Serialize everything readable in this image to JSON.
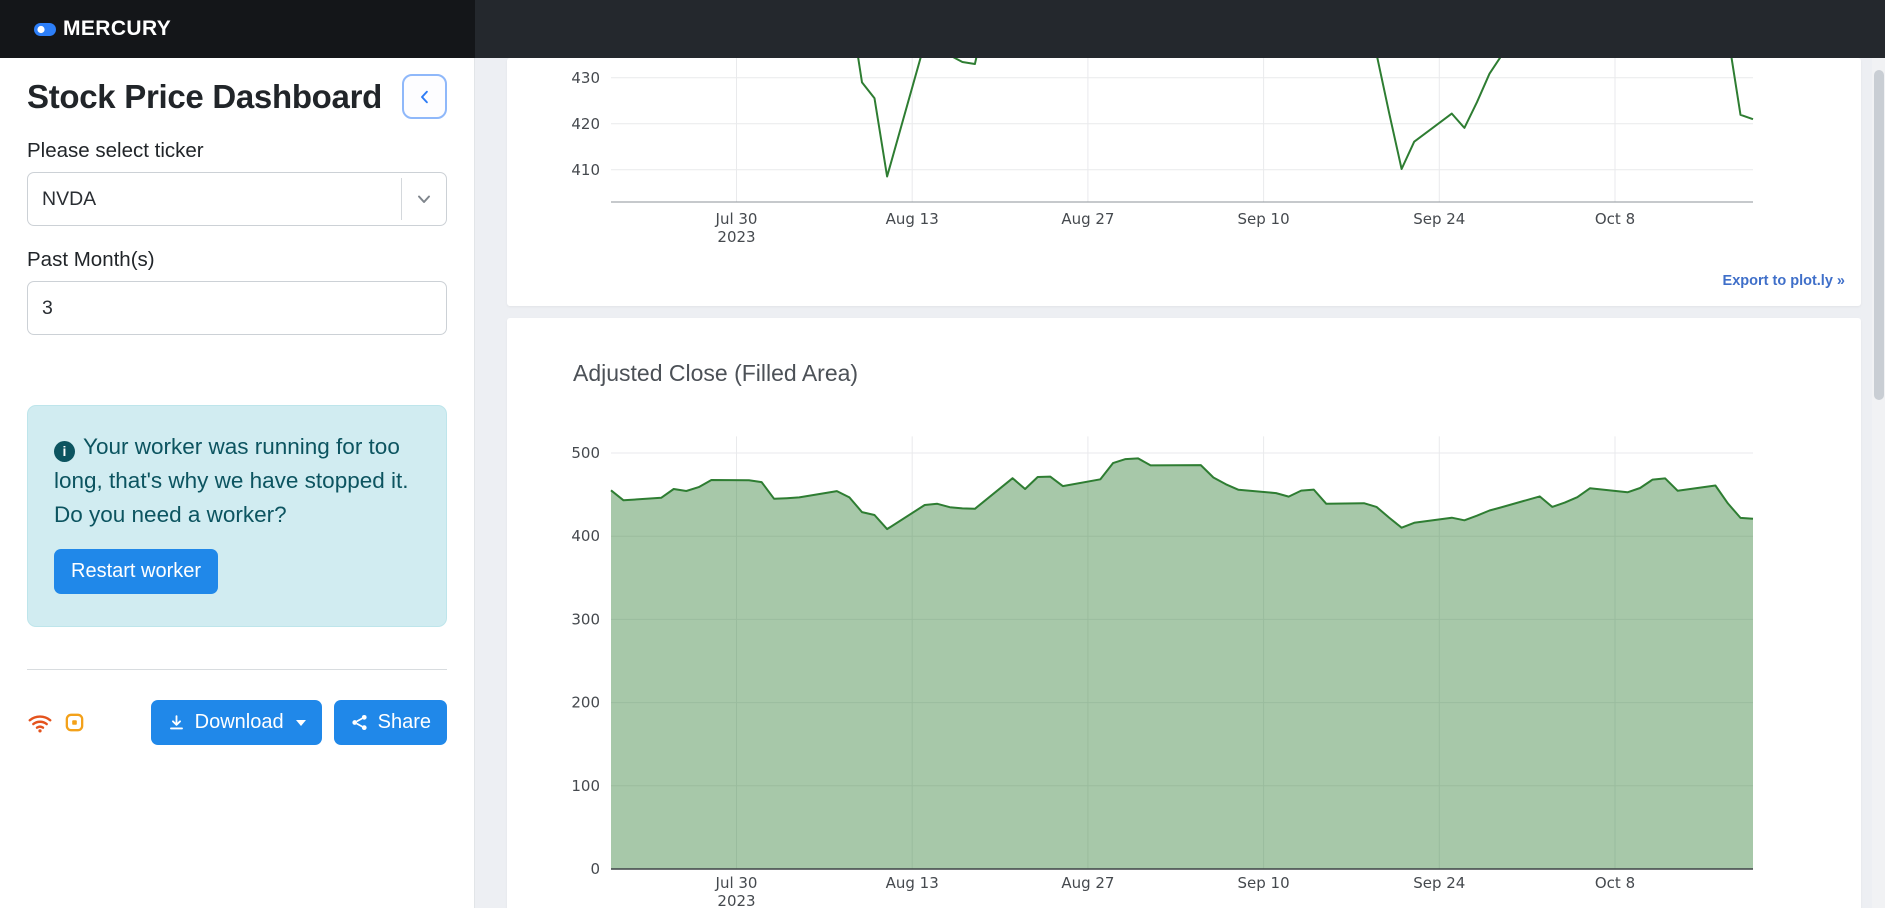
{
  "header": {
    "logo_text": "MERCURY"
  },
  "sidebar": {
    "title": "Stock Price Dashboard",
    "ticker_label": "Please select ticker",
    "ticker_value": "NVDA",
    "months_label": "Past Month(s)",
    "months_value": "3",
    "alert": {
      "text": "Your worker was running for too long, that's why we have stopped it. Do you need a worker?",
      "restart_label": "Restart worker"
    },
    "footer": {
      "download_label": "Download",
      "share_label": "Share"
    }
  },
  "main": {
    "export_link": "Export to plot.ly »"
  },
  "icons": {
    "logo": "mercury-dot",
    "collapse": "chevron-left",
    "select": "chevron-down",
    "alert": "info-circle",
    "connection": "wifi",
    "kernel": "kernel-square",
    "download": "arrow-down-to-line",
    "download_menu": "caret-down",
    "share": "share-nodes"
  },
  "colors": {
    "accent_blue": "#2088e9",
    "logo_blue": "#2d7ff9",
    "alert_bg": "#d1ecf1",
    "chart_line": "#2e7d32",
    "chart_fill": "rgba(46,125,50,0.42)",
    "wifi_icon": "#e4531d",
    "kernel_icon": "#f3a11a",
    "export_link": "#3f6fc9"
  },
  "chart_data": {
    "dates": [
      "2023-07-20",
      "2023-07-21",
      "2023-07-24",
      "2023-07-25",
      "2023-07-26",
      "2023-07-27",
      "2023-07-28",
      "2023-07-31",
      "2023-08-01",
      "2023-08-02",
      "2023-08-03",
      "2023-08-04",
      "2023-08-07",
      "2023-08-08",
      "2023-08-09",
      "2023-08-10",
      "2023-08-11",
      "2023-08-14",
      "2023-08-15",
      "2023-08-16",
      "2023-08-17",
      "2023-08-18",
      "2023-08-21",
      "2023-08-22",
      "2023-08-23",
      "2023-08-24",
      "2023-08-25",
      "2023-08-28",
      "2023-08-29",
      "2023-08-30",
      "2023-08-31",
      "2023-09-01",
      "2023-09-05",
      "2023-09-06",
      "2023-09-07",
      "2023-09-08",
      "2023-09-11",
      "2023-09-12",
      "2023-09-13",
      "2023-09-14",
      "2023-09-15",
      "2023-09-18",
      "2023-09-19",
      "2023-09-20",
      "2023-09-21",
      "2023-09-22",
      "2023-09-25",
      "2023-09-26",
      "2023-09-27",
      "2023-09-28",
      "2023-09-29",
      "2023-10-02",
      "2023-10-03",
      "2023-10-04",
      "2023-10-05",
      "2023-10-06",
      "2023-10-09",
      "2023-10-10",
      "2023-10-11",
      "2023-10-12",
      "2023-10-13",
      "2023-10-16",
      "2023-10-17",
      "2023-10-18",
      "2023-10-19"
    ],
    "adjusted_close": [
      455.2,
      443.09,
      446.12,
      456.79,
      454.27,
      459.0,
      467.5,
      467.29,
      465.07,
      444.97,
      445.68,
      446.64,
      454.17,
      446.64,
      429.0,
      425.54,
      408.55,
      437.53,
      439.0,
      434.9,
      433.44,
      432.99,
      469.67,
      456.68,
      471.16,
      471.63,
      460.18,
      468.35,
      487.84,
      492.64,
      493.55,
      485.09,
      485.48,
      470.61,
      462.41,
      455.72,
      451.78,
      447.57,
      454.85,
      455.95,
      439.0,
      439.66,
      435.2,
      422.39,
      410.17,
      416.1,
      422.22,
      419.11,
      424.68,
      430.89,
      434.99,
      447.82,
      435.17,
      440.41,
      446.88,
      457.62,
      452.73,
      457.99,
      468.06,
      469.45,
      454.61,
      460.95,
      439.38,
      421.96,
      421.01
    ],
    "xticks": [
      {
        "date": "2023-07-30",
        "label": "Jul 30",
        "sublabel": "2023"
      },
      {
        "date": "2023-08-13",
        "label": "Aug 13"
      },
      {
        "date": "2023-08-27",
        "label": "Aug 27"
      },
      {
        "date": "2023-09-10",
        "label": "Sep 10"
      },
      {
        "date": "2023-09-24",
        "label": "Sep 24"
      },
      {
        "date": "2023-10-08",
        "label": "Oct 8"
      }
    ],
    "charts": [
      {
        "type": "line",
        "title": "",
        "yticks": [
          410,
          420,
          430
        ],
        "y_axis_min": 403,
        "partially_visible": true,
        "grid": true
      },
      {
        "type": "area",
        "title": "Adjusted Close (Filled Area)",
        "yticks": [
          0,
          100,
          200,
          300,
          400,
          500
        ],
        "ylim": [
          0,
          520
        ],
        "grid": true
      }
    ]
  }
}
